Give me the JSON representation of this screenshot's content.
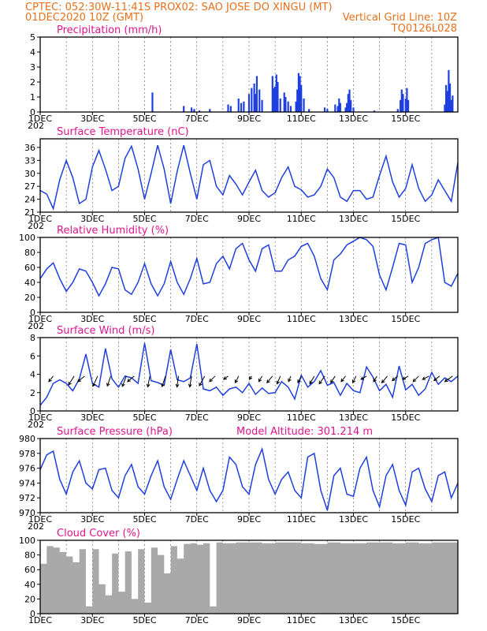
{
  "header": {
    "line1": "CPTEC:  052:30W-11:41S  PROX02: SAO JOSE DO XINGU (MT)",
    "line2_left": "01DEC2020 10Z (GMT)",
    "line2_right": "Vertical Grid Line: 10Z",
    "line3_right": "TQ0126L028"
  },
  "x_ticks": [
    "1DEC",
    "3DEC",
    "5DEC",
    "7DEC",
    "9DEC",
    "11DEC",
    "13DEC",
    "15DEC"
  ],
  "x_tick_sub": "202",
  "colors": {
    "series": "#1f3fe0",
    "titles": "#e0168c",
    "header": "#e8701a",
    "cloud": "#a9a9a9",
    "arrow": "#000000"
  },
  "chart_data": [
    {
      "type": "bar",
      "id": "precip",
      "title": "Precipitation (mm/h)",
      "ylim": [
        0,
        5
      ],
      "yticks": [
        0,
        1,
        2,
        3,
        4,
        5
      ],
      "x_unit": "days since 01DEC2020 10Z",
      "bars": [
        [
          4.3,
          1.3
        ],
        [
          5.5,
          0.4
        ],
        [
          5.8,
          0.3
        ],
        [
          5.9,
          0.2
        ],
        [
          6.1,
          0.1
        ],
        [
          6.5,
          0.2
        ],
        [
          7.2,
          0.5
        ],
        [
          7.3,
          0.4
        ],
        [
          7.6,
          0.9
        ],
        [
          7.7,
          0.6
        ],
        [
          7.8,
          0.7
        ],
        [
          8.0,
          1.2
        ],
        [
          8.1,
          1.6
        ],
        [
          8.2,
          1.9
        ],
        [
          8.25,
          1.2
        ],
        [
          8.3,
          2.4
        ],
        [
          8.4,
          1.5
        ],
        [
          8.5,
          0.8
        ],
        [
          8.9,
          2.4
        ],
        [
          8.95,
          1.6
        ],
        [
          9.0,
          1.7
        ],
        [
          9.05,
          2.5
        ],
        [
          9.1,
          2.0
        ],
        [
          9.2,
          0.9
        ],
        [
          9.35,
          1.3
        ],
        [
          9.4,
          1.0
        ],
        [
          9.5,
          0.7
        ],
        [
          9.6,
          0.4
        ],
        [
          9.8,
          0.7
        ],
        [
          9.85,
          1.5
        ],
        [
          9.9,
          2.6
        ],
        [
          9.95,
          2.4
        ],
        [
          10.0,
          1.8
        ],
        [
          10.1,
          0.9
        ],
        [
          10.3,
          0.2
        ],
        [
          10.9,
          0.3
        ],
        [
          11.0,
          0.2
        ],
        [
          11.3,
          0.5
        ],
        [
          11.4,
          0.4
        ],
        [
          11.45,
          0.9
        ],
        [
          11.5,
          0.6
        ],
        [
          11.7,
          0.3
        ],
        [
          11.75,
          0.6
        ],
        [
          11.8,
          1.2
        ],
        [
          11.85,
          1.5
        ],
        [
          11.9,
          0.8
        ],
        [
          12.0,
          0.3
        ],
        [
          12.8,
          0.1
        ],
        [
          13.7,
          0.2
        ],
        [
          13.8,
          0.8
        ],
        [
          13.85,
          1.5
        ],
        [
          13.9,
          1.2
        ],
        [
          14.0,
          0.9
        ],
        [
          14.05,
          1.6
        ],
        [
          14.1,
          0.8
        ],
        [
          15.5,
          0.5
        ],
        [
          15.55,
          1.8
        ],
        [
          15.6,
          1.4
        ],
        [
          15.65,
          2.8
        ],
        [
          15.7,
          1.9
        ],
        [
          15.75,
          0.8
        ],
        [
          15.8,
          1.1
        ]
      ]
    },
    {
      "type": "line",
      "id": "temp",
      "title": "Surface Temperature (nC)",
      "ylim": [
        21,
        38
      ],
      "yticks": [
        21,
        24,
        27,
        30,
        33,
        36
      ],
      "x": [
        0,
        0.25,
        0.5,
        0.75,
        1.0,
        1.25,
        1.5,
        1.75,
        2.0,
        2.25,
        2.5,
        2.75,
        3.0,
        3.25,
        3.5,
        3.75,
        4.0,
        4.25,
        4.5,
        4.75,
        5.0,
        5.25,
        5.5,
        5.75,
        6.0,
        6.25,
        6.5,
        6.75,
        7.0,
        7.25,
        7.5,
        7.75,
        8.0,
        8.25,
        8.5,
        8.75,
        9.0,
        9.25,
        9.5,
        9.75,
        10.0,
        10.25,
        10.5,
        10.75,
        11.0,
        11.25,
        11.5,
        11.75,
        12.0,
        12.25,
        12.5,
        12.75,
        13.0,
        13.25,
        13.5,
        13.75,
        14.0,
        14.25,
        14.5,
        14.75,
        15.0,
        15.25,
        15.5,
        15.75,
        16.0
      ],
      "y": [
        26.0,
        25.2,
        21.8,
        28.5,
        33.0,
        29.0,
        23.0,
        24.0,
        31.5,
        35.3,
        31.0,
        26.0,
        27.0,
        33.5,
        36.3,
        31.0,
        24.0,
        30.0,
        36.5,
        31.0,
        23.0,
        30.5,
        36.5,
        30.0,
        24.0,
        32.0,
        33.0,
        27.0,
        25.0,
        29.5,
        27.5,
        25.0,
        28.0,
        30.7,
        26.0,
        24.5,
        25.5,
        29.0,
        31.5,
        27.0,
        26.2,
        24.5,
        25.0,
        27.0,
        31.0,
        29.0,
        24.5,
        23.5,
        26.0,
        26.0,
        24.0,
        24.5,
        29.5,
        34.0,
        28.0,
        24.5,
        26.5,
        32.0,
        26.5,
        23.5,
        25.0,
        28.5,
        26.0,
        23.5,
        32.5
      ]
    },
    {
      "type": "line",
      "id": "rh",
      "title": "Relative Humidity (%)",
      "ylim": [
        0,
        100
      ],
      "yticks": [
        0,
        20,
        40,
        60,
        80,
        100
      ],
      "x": [
        0,
        0.25,
        0.5,
        0.75,
        1.0,
        1.25,
        1.5,
        1.75,
        2.0,
        2.25,
        2.5,
        2.75,
        3.0,
        3.25,
        3.5,
        3.75,
        4.0,
        4.25,
        4.5,
        4.75,
        5.0,
        5.25,
        5.5,
        5.75,
        6.0,
        6.25,
        6.5,
        6.75,
        7.0,
        7.25,
        7.5,
        7.75,
        8.0,
        8.25,
        8.5,
        8.75,
        9.0,
        9.25,
        9.5,
        9.75,
        10.0,
        10.25,
        10.5,
        10.75,
        11.0,
        11.25,
        11.5,
        11.75,
        12.0,
        12.25,
        12.5,
        12.75,
        13.0,
        13.25,
        13.5,
        13.75,
        14.0,
        14.25,
        14.5,
        14.75,
        15.0,
        15.25,
        15.5,
        15.75,
        16.0
      ],
      "y": [
        45,
        58,
        66,
        45,
        28,
        40,
        58,
        55,
        40,
        22,
        38,
        60,
        58,
        30,
        24,
        40,
        65,
        38,
        22,
        38,
        68,
        40,
        24,
        45,
        72,
        38,
        40,
        65,
        75,
        58,
        85,
        92,
        70,
        55,
        85,
        90,
        55,
        55,
        70,
        75,
        88,
        92,
        75,
        45,
        30,
        70,
        78,
        90,
        95,
        100,
        97,
        88,
        50,
        30,
        60,
        92,
        90,
        40,
        60,
        92,
        97,
        100,
        40,
        35,
        52
      ]
    },
    {
      "type": "line",
      "id": "wind",
      "title": "Surface Wind (m/s)",
      "ylim": [
        0,
        8
      ],
      "yticks": [
        0,
        2,
        4,
        6,
        8
      ],
      "x": [
        0,
        0.25,
        0.5,
        0.75,
        1.0,
        1.25,
        1.5,
        1.75,
        2.0,
        2.25,
        2.5,
        2.75,
        3.0,
        3.25,
        3.5,
        3.75,
        4.0,
        4.25,
        4.5,
        4.75,
        5.0,
        5.25,
        5.5,
        5.75,
        6.0,
        6.25,
        6.5,
        6.75,
        7.0,
        7.25,
        7.5,
        7.75,
        8.0,
        8.25,
        8.5,
        8.75,
        9.0,
        9.25,
        9.5,
        9.75,
        10.0,
        10.25,
        10.5,
        10.75,
        11.0,
        11.25,
        11.5,
        11.75,
        12.0,
        12.25,
        12.5,
        12.75,
        13.0,
        13.25,
        13.5,
        13.75,
        14.0,
        14.25,
        14.5,
        14.75,
        15.0,
        15.25,
        15.5,
        15.75,
        16.0
      ],
      "y": [
        0.6,
        1.5,
        3.0,
        3.4,
        3.0,
        2.2,
        3.5,
        6.2,
        3.0,
        2.6,
        6.8,
        3.5,
        2.6,
        3.8,
        3.6,
        3.0,
        7.4,
        3.3,
        3.1,
        2.8,
        6.7,
        3.4,
        3.2,
        3.6,
        7.3,
        2.4,
        2.2,
        2.6,
        1.7,
        2.4,
        2.6,
        2.0,
        3.0,
        1.8,
        2.5,
        1.9,
        2.0,
        3.2,
        2.6,
        1.3,
        3.9,
        2.6,
        3.2,
        4.4,
        2.8,
        3.1,
        1.7,
        3.0,
        2.2,
        2.0,
        4.8,
        3.7,
        2.2,
        2.9,
        1.5,
        4.9,
        2.3,
        2.9,
        1.7,
        2.4,
        4.2,
        2.9,
        3.6,
        3.2,
        3.8
      ],
      "arrows_y": 3.8,
      "arrows_x": [
        0.5,
        1.3,
        1.7,
        2.2,
        2.7,
        3.3,
        3.6,
        4.2,
        4.8,
        5.3,
        5.8,
        6.3,
        6.7,
        7.2,
        7.6,
        8.1,
        8.5,
        8.9,
        9.2,
        9.6,
        10.0,
        10.5,
        10.9,
        11.3,
        11.7,
        12.1,
        12.5,
        12.9,
        13.3,
        13.7,
        14.1,
        14.5,
        14.9,
        15.3,
        15.8
      ],
      "arrows_u": [
        0.4,
        0.5,
        0.6,
        0.5,
        0.3,
        0.5,
        0.6,
        0.3,
        0.4,
        0.2,
        0.3,
        0.6,
        0.5,
        0.4,
        0.3,
        0.2,
        0.3,
        0.5,
        0.3,
        0.2,
        0.3,
        0.4,
        0.5,
        0.4,
        0.4,
        0.3,
        0.5,
        0.3,
        0.5,
        0.5,
        0.5,
        0.5,
        0.6,
        0.5,
        0.7
      ],
      "arrows_v": [
        0.5,
        0.8,
        0.5,
        1.1,
        0.9,
        1.3,
        0.5,
        1.6,
        1.2,
        1.4,
        1.7,
        1.1,
        0.5,
        0.3,
        0.6,
        0.3,
        0.5,
        0.6,
        0.7,
        0.5,
        0.6,
        0.7,
        0.7,
        0.6,
        0.5,
        0.6,
        0.3,
        0.5,
        0.6,
        0.4,
        0.3,
        0.5,
        0.3,
        0.4,
        0.5
      ]
    },
    {
      "type": "line",
      "id": "press",
      "title": "Surface Pressure (hPa)",
      "subtitle": "Model Altitude: 301.214 m",
      "ylim": [
        970,
        980
      ],
      "yticks": [
        970,
        972,
        974,
        976,
        978,
        980
      ],
      "x": [
        0,
        0.25,
        0.5,
        0.75,
        1.0,
        1.25,
        1.5,
        1.75,
        2.0,
        2.25,
        2.5,
        2.75,
        3.0,
        3.25,
        3.5,
        3.75,
        4.0,
        4.25,
        4.5,
        4.75,
        5.0,
        5.25,
        5.5,
        5.75,
        6.0,
        6.25,
        6.5,
        6.75,
        7.0,
        7.25,
        7.5,
        7.75,
        8.0,
        8.25,
        8.5,
        8.75,
        9.0,
        9.25,
        9.5,
        9.75,
        10.0,
        10.25,
        10.5,
        10.75,
        11.0,
        11.25,
        11.5,
        11.75,
        12.0,
        12.25,
        12.5,
        12.75,
        13.0,
        13.25,
        13.5,
        13.75,
        14.0,
        14.25,
        14.5,
        14.75,
        15.0,
        15.25,
        15.5,
        15.75,
        16.0
      ],
      "y": [
        975.8,
        977.8,
        978.3,
        974.5,
        972.5,
        975.5,
        977.0,
        974.0,
        973.2,
        975.8,
        976.0,
        973.0,
        972.0,
        975.0,
        976.5,
        973.5,
        972.5,
        975.0,
        977.0,
        973.5,
        971.8,
        974.5,
        977.0,
        975.0,
        973.0,
        976.0,
        973.0,
        971.5,
        973.0,
        977.5,
        976.5,
        973.5,
        972.5,
        976.5,
        978.6,
        974.5,
        972.5,
        974.5,
        975.5,
        973.0,
        972.0,
        977.5,
        978.0,
        973.0,
        970.3,
        975.0,
        976.0,
        972.5,
        972.2,
        976.0,
        977.5,
        973.0,
        970.8,
        975.0,
        976.5,
        973.0,
        971.0,
        975.5,
        976.0,
        973.2,
        971.5,
        975.0,
        975.5,
        972.0,
        974.0
      ]
    },
    {
      "type": "area",
      "id": "cloud",
      "title": "Cloud Cover (%)",
      "ylim": [
        0,
        100
      ],
      "yticks": [
        0,
        20,
        40,
        60,
        80,
        100
      ],
      "x": [
        0,
        0.25,
        0.5,
        0.75,
        1.0,
        1.25,
        1.5,
        1.75,
        2.0,
        2.25,
        2.5,
        2.75,
        3.0,
        3.25,
        3.5,
        3.75,
        4.0,
        4.25,
        4.5,
        4.75,
        5.0,
        5.25,
        5.5,
        5.75,
        6.0,
        6.25,
        6.5,
        6.75,
        7.0,
        7.5,
        8.0,
        8.5,
        9.0,
        9.5,
        10.0,
        10.5,
        11.0,
        11.5,
        12.0,
        12.5,
        13.0,
        13.5,
        14.0,
        14.5,
        15.0,
        15.5,
        16.0
      ],
      "y": [
        68,
        92,
        90,
        84,
        78,
        70,
        88,
        10,
        88,
        40,
        25,
        82,
        30,
        85,
        20,
        88,
        15,
        90,
        80,
        55,
        92,
        75,
        95,
        96,
        94,
        96,
        10,
        97,
        96,
        97,
        97,
        96,
        97,
        97,
        96,
        95,
        97,
        96,
        96,
        97,
        97,
        96,
        97,
        96,
        97,
        97,
        96
      ]
    }
  ]
}
